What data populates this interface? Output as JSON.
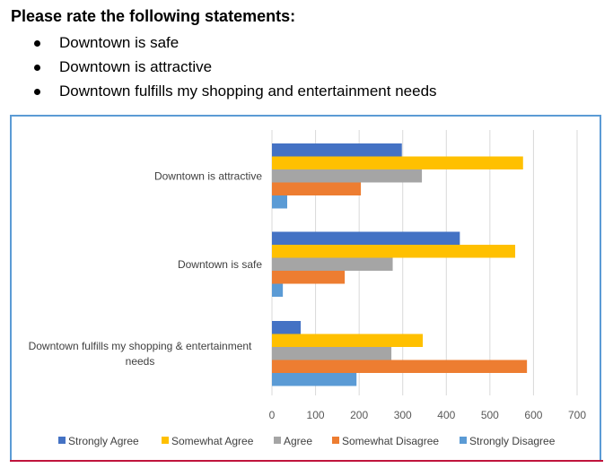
{
  "heading": "Please rate the following statements:",
  "bullets": [
    "Downtown is safe",
    "Downtown is attractive",
    "Downtown fulfills my shopping and entertainment needs"
  ],
  "chart_data": {
    "type": "bar",
    "orientation": "horizontal",
    "title": "",
    "xlabel": "",
    "ylabel": "",
    "categories": [
      "Downtown is attractive",
      "Downtown is safe",
      "Downtown fulfills my shopping & entertainment needs"
    ],
    "category_label_lines": [
      [
        "Downtown is attractive"
      ],
      [
        "Downtown is safe"
      ],
      [
        "Downtown fulfills my shopping & entertainment",
        "needs"
      ]
    ],
    "series": [
      {
        "name": "Strongly Agree",
        "color": "#4472c4",
        "values": [
          298,
          431,
          66
        ]
      },
      {
        "name": "Somewhat Agree",
        "color": "#ffc000",
        "values": [
          576,
          558,
          346
        ]
      },
      {
        "name": "Agree",
        "color": "#a5a5a5",
        "values": [
          344,
          277,
          274
        ]
      },
      {
        "name": "Somewhat Disagree",
        "color": "#ed7d31",
        "values": [
          204,
          167,
          585
        ]
      },
      {
        "name": "Strongly Disagree",
        "color": "#5b9bd5",
        "values": [
          35,
          25,
          194
        ]
      }
    ],
    "xlim": [
      0,
      700
    ],
    "xticks": [
      0,
      100,
      200,
      300,
      400,
      500,
      600,
      700
    ],
    "grid": true,
    "legend_position": "bottom"
  }
}
